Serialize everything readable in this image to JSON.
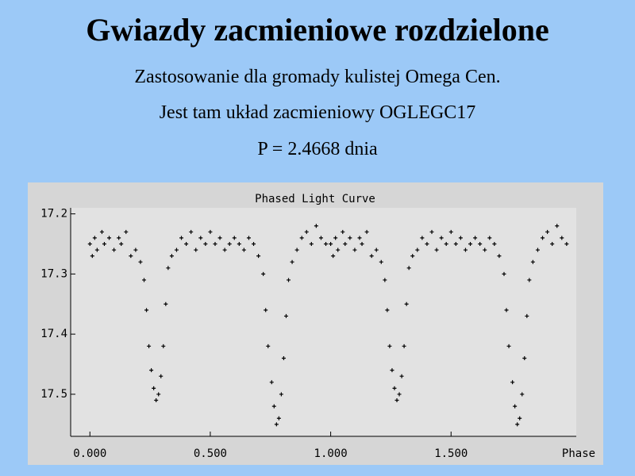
{
  "title": "Gwiazdy zacmieniowe rozdzielone",
  "lines": [
    "Zastosowanie dla gromady kulistej Omega Cen.",
    "Jest tam układ zacmieniowy OGLEGC17",
    "P = 2.4668 dnia"
  ],
  "chart_data": {
    "type": "scatter",
    "title": "Phased Light Curve",
    "x_label": "Phase",
    "color": "#000000",
    "y_inverted": true,
    "xlim": [
      -0.08,
      2.02
    ],
    "ylim": [
      17.19,
      17.57
    ],
    "xticks": [
      {
        "value": 0,
        "label": "0.000"
      },
      {
        "value": 0.5,
        "label": "0.500"
      },
      {
        "value": 1,
        "label": "1.000"
      },
      {
        "value": 1.5,
        "label": "1.500"
      }
    ],
    "yticks": [
      17.2,
      17.3,
      17.4,
      17.5
    ],
    "x": [
      0,
      0.01,
      0.02,
      0.03,
      0.05,
      0.06,
      0.08,
      0.1,
      0.12,
      0.13,
      0.15,
      0.17,
      0.19,
      0.21,
      0.225,
      0.235,
      0.245,
      0.255,
      0.265,
      0.275,
      0.285,
      0.295,
      0.305,
      0.315,
      0.325,
      0.34,
      0.36,
      0.38,
      0.4,
      0.42,
      0.44,
      0.46,
      0.48,
      0.5,
      0.52,
      0.54,
      0.56,
      0.58,
      0.6,
      0.62,
      0.64,
      0.66,
      0.68,
      0.7,
      0.72,
      0.73,
      0.74,
      0.755,
      0.765,
      0.775,
      0.785,
      0.795,
      0.805,
      0.815,
      0.825,
      0.84,
      0.86,
      0.88,
      0.9,
      0.92,
      0.94,
      0.96,
      0.98,
      1,
      1.01,
      1.02,
      1.03,
      1.05,
      1.06,
      1.08,
      1.1,
      1.12,
      1.13,
      1.15,
      1.17,
      1.19,
      1.21,
      1.225,
      1.235,
      1.245,
      1.255,
      1.265,
      1.275,
      1.285,
      1.295,
      1.305,
      1.315,
      1.325,
      1.34,
      1.36,
      1.38,
      1.4,
      1.42,
      1.44,
      1.46,
      1.48,
      1.5,
      1.52,
      1.54,
      1.56,
      1.58,
      1.6,
      1.62,
      1.64,
      1.66,
      1.68,
      1.7,
      1.72,
      1.73,
      1.74,
      1.755,
      1.765,
      1.775,
      1.785,
      1.795,
      1.805,
      1.815,
      1.825,
      1.84,
      1.86,
      1.88,
      1.9,
      1.92,
      1.94,
      1.96,
      1.98
    ],
    "y": [
      17.25,
      17.27,
      17.24,
      17.26,
      17.23,
      17.25,
      17.24,
      17.26,
      17.24,
      17.25,
      17.23,
      17.27,
      17.26,
      17.28,
      17.31,
      17.36,
      17.42,
      17.46,
      17.49,
      17.51,
      17.5,
      17.47,
      17.42,
      17.35,
      17.29,
      17.27,
      17.26,
      17.24,
      17.25,
      17.23,
      17.26,
      17.24,
      17.25,
      17.23,
      17.25,
      17.24,
      17.26,
      17.25,
      17.24,
      17.25,
      17.26,
      17.24,
      17.25,
      17.27,
      17.3,
      17.36,
      17.42,
      17.48,
      17.52,
      17.55,
      17.54,
      17.5,
      17.44,
      17.37,
      17.31,
      17.28,
      17.26,
      17.24,
      17.23,
      17.25,
      17.22,
      17.24,
      17.25,
      17.25,
      17.27,
      17.24,
      17.26,
      17.23,
      17.25,
      17.24,
      17.26,
      17.24,
      17.25,
      17.23,
      17.27,
      17.26,
      17.28,
      17.31,
      17.36,
      17.42,
      17.46,
      17.49,
      17.51,
      17.5,
      17.47,
      17.42,
      17.35,
      17.29,
      17.27,
      17.26,
      17.24,
      17.25,
      17.23,
      17.26,
      17.24,
      17.25,
      17.23,
      17.25,
      17.24,
      17.26,
      17.25,
      17.24,
      17.25,
      17.26,
      17.24,
      17.25,
      17.27,
      17.3,
      17.36,
      17.42,
      17.48,
      17.52,
      17.55,
      17.54,
      17.5,
      17.44,
      17.37,
      17.31,
      17.28,
      17.26,
      17.24,
      17.23,
      17.25,
      17.22,
      17.24,
      17.25
    ]
  }
}
